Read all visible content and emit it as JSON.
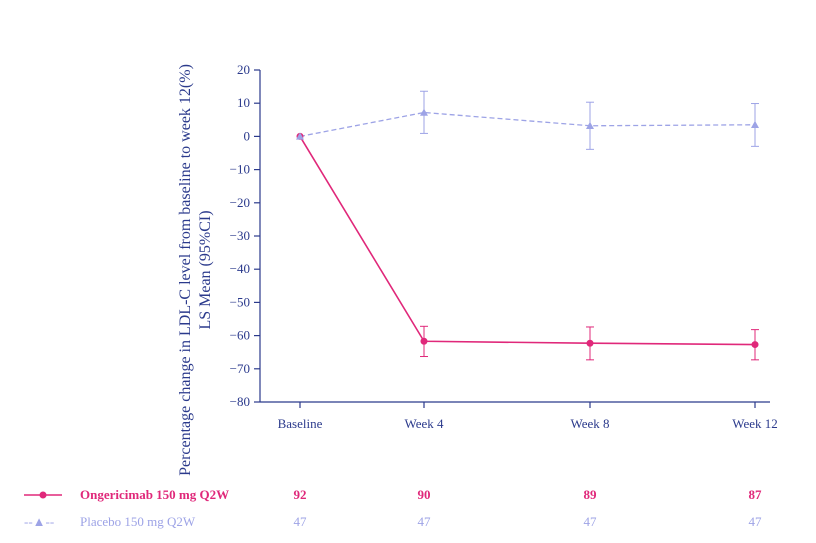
{
  "chart_data": {
    "type": "line",
    "categories": [
      "Baseline",
      "Week 4",
      "Week 8",
      "Week 12"
    ],
    "ylabel_line1": "Percentage change in LDL-C level from baseline to week 12(%)",
    "ylabel_line2": "LS Mean (95%CI)",
    "ylim": [
      -80,
      20
    ],
    "yticks": [
      20,
      10,
      0,
      -10,
      -20,
      -30,
      -40,
      -50,
      -60,
      -70,
      -80
    ],
    "ytick_labels": [
      "20",
      "10",
      "0",
      "−10",
      "−20",
      "−30",
      "−40",
      "−50",
      "−60",
      "−70",
      "−80"
    ],
    "grid": false,
    "legend_position": "bottom-left",
    "series": [
      {
        "name": "Ongericimab 150 mg Q2W",
        "legend_symbol": "",
        "color": "#e0287a",
        "marker": "circle",
        "linestyle": "solid",
        "values": [
          0,
          -61.7,
          -62.3,
          -62.7
        ],
        "ci_low": [
          null,
          -66.3,
          -67.3,
          -67.3
        ],
        "ci_high": [
          null,
          -57.2,
          -57.4,
          -58.2
        ],
        "n": [
          "92",
          "90",
          "89",
          "87"
        ]
      },
      {
        "name": "Placebo 150 mg Q2W",
        "legend_symbol": "--▲--",
        "color": "#9da3e6",
        "marker": "triangle",
        "linestyle": "dashed",
        "values": [
          0,
          7.2,
          3.2,
          3.5
        ],
        "ci_low": [
          null,
          0.9,
          -3.9,
          -3.0
        ],
        "ci_high": [
          null,
          13.6,
          10.3,
          9.9
        ],
        "n": [
          "47",
          "47",
          "47",
          "47"
        ]
      }
    ]
  },
  "colors": {
    "axis": "#2b3a8c",
    "ongericimab": "#e0287a",
    "placebo": "#9da3e6"
  }
}
